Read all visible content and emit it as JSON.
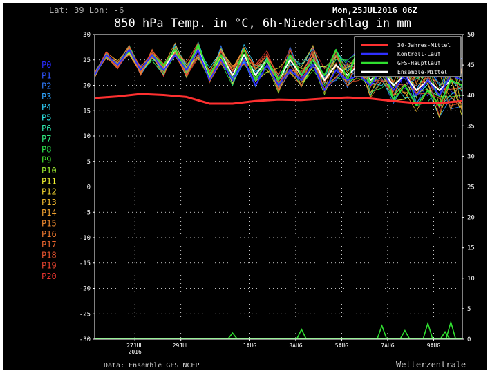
{
  "header": {
    "location": "Lat: 39 Lon: -6",
    "date": "Mon,25JUL2016 06Z",
    "title": "850 hPa Temp. in °C, 6h-Niederschlag in mm"
  },
  "footer": {
    "source": "Data: Ensemble GFS NCEP",
    "brand": "Wetterzentrale"
  },
  "members": [
    {
      "label": "P0",
      "color": "#2a2aff"
    },
    {
      "label": "P1",
      "color": "#2f55ff"
    },
    {
      "label": "P2",
      "color": "#2f7dff"
    },
    {
      "label": "P3",
      "color": "#2fa5ff"
    },
    {
      "label": "P4",
      "color": "#2fd2ff"
    },
    {
      "label": "P5",
      "color": "#2ff0ef"
    },
    {
      "label": "P6",
      "color": "#2fe8b0"
    },
    {
      "label": "P7",
      "color": "#2fe880"
    },
    {
      "label": "P8",
      "color": "#2fe850"
    },
    {
      "label": "P9",
      "color": "#45e82f"
    },
    {
      "label": "P10",
      "color": "#9be82f"
    },
    {
      "label": "P11",
      "color": "#f0f02f"
    },
    {
      "label": "P12",
      "color": "#f0d22f"
    },
    {
      "label": "P13",
      "color": "#f0b82f"
    },
    {
      "label": "P14",
      "color": "#f0a02f"
    },
    {
      "label": "P15",
      "color": "#f08a2f"
    },
    {
      "label": "P16",
      "color": "#ee782f"
    },
    {
      "label": "P17",
      "color": "#ec662f"
    },
    {
      "label": "P18",
      "color": "#ea542f"
    },
    {
      "label": "P19",
      "color": "#e8442f"
    },
    {
      "label": "P20",
      "color": "#e8342f"
    }
  ],
  "legend": [
    {
      "label": "30-Jahres-Mittel",
      "color": "#ff3030"
    },
    {
      "label": "Kontroll-Lauf",
      "color": "#3030ff"
    },
    {
      "label": "GFS-Hauptlauf",
      "color": "#30e030"
    },
    {
      "label": "Ensemble-Mittel",
      "color": "#ffffff"
    }
  ],
  "chart_data": {
    "type": "line",
    "title": "850 hPa Temp. in °C, 6h-Niederschlag in mm",
    "x_start": "25JUL2016 06Z",
    "x_end": "10AUG2016 06Z",
    "x_ticks": [
      {
        "date": "27JUL2016",
        "label": "27JUL",
        "sublabel": "2016"
      },
      {
        "date": "29JUL2016",
        "label": "29JUL"
      },
      {
        "date": "01AUG2016",
        "label": "1AUG"
      },
      {
        "date": "03AUG2016",
        "label": "3AUG"
      },
      {
        "date": "05AUG2016",
        "label": "5AUG"
      },
      {
        "date": "07AUG2016",
        "label": "7AUG"
      },
      {
        "date": "09AUG2016",
        "label": "9AUG"
      }
    ],
    "y_left": {
      "ticks": [
        30,
        25,
        20,
        15,
        10,
        5,
        0,
        -5,
        -10,
        -15,
        -20,
        -25,
        -30
      ],
      "range": [
        -30,
        30
      ]
    },
    "y_right": {
      "ticks": [
        50,
        45,
        40,
        35,
        30,
        25,
        20,
        15,
        10,
        5,
        0
      ],
      "range": [
        0,
        50
      ]
    },
    "grid": true,
    "legend_position": "top-right",
    "series": [
      {
        "name": "Ensemble-Mittel",
        "axis": "left",
        "color": "#ffffff",
        "x": [
          "25JUL2016 06Z",
          "25JUL2016 18Z",
          "26JUL2016 06Z",
          "26JUL2016 18Z",
          "27JUL2016 06Z",
          "27JUL2016 18Z",
          "28JUL2016 06Z",
          "28JUL2016 18Z",
          "29JUL2016 06Z",
          "29JUL2016 18Z",
          "30JUL2016 06Z",
          "30JUL2016 18Z",
          "31JUL2016 06Z",
          "31JUL2016 18Z",
          "01AUG2016 06Z",
          "01AUG2016 18Z",
          "02AUG2016 06Z",
          "02AUG2016 18Z",
          "03AUG2016 06Z",
          "03AUG2016 18Z",
          "04AUG2016 06Z",
          "04AUG2016 18Z",
          "05AUG2016 06Z",
          "05AUG2016 18Z",
          "06AUG2016 06Z",
          "06AUG2016 18Z",
          "07AUG2016 06Z",
          "07AUG2016 18Z",
          "08AUG2016 06Z",
          "08AUG2016 18Z",
          "09AUG2016 06Z",
          "09AUG2016 18Z",
          "10AUG2016 06Z"
        ],
        "y": [
          22,
          26,
          24,
          27,
          23,
          26,
          23,
          27,
          23,
          27,
          22,
          26,
          22,
          26,
          22,
          25,
          21,
          25,
          22,
          25,
          21,
          24,
          22,
          24,
          21,
          23,
          20,
          22,
          19,
          21,
          19,
          21,
          20
        ]
      },
      {
        "name": "GFS-Hauptlauf",
        "axis": "left",
        "color": "#30e030",
        "x": [
          "25JUL2016 06Z",
          "25JUL2016 18Z",
          "26JUL2016 06Z",
          "26JUL2016 18Z",
          "27JUL2016 06Z",
          "27JUL2016 18Z",
          "28JUL2016 06Z",
          "28JUL2016 18Z",
          "29JUL2016 06Z",
          "29JUL2016 18Z",
          "30JUL2016 06Z",
          "30JUL2016 18Z",
          "31JUL2016 06Z",
          "31JUL2016 18Z",
          "01AUG2016 06Z",
          "01AUG2016 18Z",
          "02AUG2016 06Z",
          "02AUG2016 18Z",
          "03AUG2016 06Z",
          "03AUG2016 18Z",
          "04AUG2016 06Z",
          "04AUG2016 18Z",
          "05AUG2016 06Z",
          "05AUG2016 18Z",
          "06AUG2016 06Z",
          "06AUG2016 18Z",
          "07AUG2016 06Z",
          "07AUG2016 18Z",
          "08AUG2016 06Z",
          "08AUG2016 18Z",
          "09AUG2016 06Z",
          "09AUG2016 18Z",
          "10AUG2016 06Z"
        ],
        "y": [
          22,
          26,
          24,
          27,
          23,
          26,
          24,
          27,
          23,
          28,
          22,
          26,
          21,
          27,
          21,
          25,
          21,
          26,
          22,
          25,
          22,
          27,
          21,
          28,
          20,
          25,
          17,
          20,
          16,
          19,
          16,
          21,
          20
        ]
      },
      {
        "name": "Kontroll-Lauf",
        "axis": "left",
        "color": "#3030ff",
        "x": [
          "25JUL2016 06Z",
          "25JUL2016 18Z",
          "26JUL2016 06Z",
          "26JUL2016 18Z",
          "27JUL2016 06Z",
          "27JUL2016 18Z",
          "28JUL2016 06Z",
          "28JUL2016 18Z",
          "29JUL2016 06Z",
          "29JUL2016 18Z",
          "30JUL2016 06Z",
          "30JUL2016 18Z",
          "31JUL2016 06Z",
          "31JUL2016 18Z",
          "01AUG2016 06Z",
          "01AUG2016 18Z",
          "02AUG2016 06Z",
          "02AUG2016 18Z",
          "03AUG2016 06Z",
          "03AUG2016 18Z",
          "04AUG2016 06Z",
          "04AUG2016 18Z",
          "05AUG2016 06Z",
          "05AUG2016 18Z",
          "06AUG2016 06Z",
          "06AUG2016 18Z",
          "07AUG2016 06Z",
          "07AUG2016 18Z",
          "08AUG2016 06Z",
          "08AUG2016 18Z",
          "09AUG2016 06Z",
          "09AUG2016 18Z",
          "10AUG2016 06Z"
        ],
        "y": [
          22,
          26,
          24,
          27,
          23,
          26,
          23,
          26,
          23,
          27,
          21,
          25,
          21,
          25,
          20,
          24,
          20,
          23,
          21,
          24,
          19,
          23,
          21,
          22,
          20,
          23,
          19,
          22,
          18,
          21,
          18,
          22,
          21
        ]
      },
      {
        "name": "30-Jahres-Mittel",
        "axis": "left",
        "color": "#ff3030",
        "x": [
          "25JUL2016 06Z",
          "26JUL2016 06Z",
          "27JUL2016 06Z",
          "28JUL2016 06Z",
          "29JUL2016 06Z",
          "30JUL2016 06Z",
          "31JUL2016 06Z",
          "01AUG2016 06Z",
          "02AUG2016 06Z",
          "03AUG2016 06Z",
          "04AUG2016 06Z",
          "05AUG2016 06Z",
          "06AUG2016 06Z",
          "07AUG2016 06Z",
          "08AUG2016 06Z",
          "09AUG2016 06Z",
          "10AUG2016 06Z"
        ],
        "y": [
          17.5,
          17.8,
          18.3,
          18.1,
          17.7,
          16.4,
          16.4,
          16.9,
          17.2,
          17.1,
          17.4,
          17.6,
          17.4,
          16.9,
          16.5,
          16.5,
          16.9
        ]
      },
      {
        "name": "Niederschlag",
        "axis": "right",
        "color": "#30e030",
        "x": [
          "31JUL2016 06Z",
          "03AUG2016 06Z",
          "06AUG2016 18Z",
          "07AUG2016 18Z",
          "08AUG2016 18Z",
          "09AUG2016 12Z",
          "09AUG2016 18Z"
        ],
        "y": [
          1.0,
          1.6,
          2.2,
          1.4,
          2.6,
          1.2,
          2.8
        ]
      }
    ]
  }
}
